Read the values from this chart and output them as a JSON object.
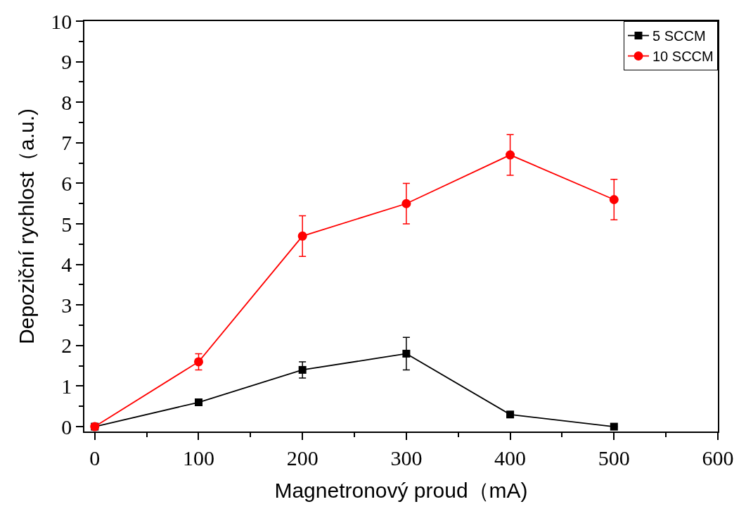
{
  "chart_data": {
    "type": "line",
    "xlabel": "Magnetronový proud（mA)",
    "ylabel": "Depoziční rychlost（a.u.)",
    "x": [
      0,
      100,
      200,
      300,
      400,
      500
    ],
    "series": [
      {
        "name": "5 SCCM",
        "color": "#000000",
        "marker": "square",
        "values": [
          0,
          0.6,
          1.4,
          1.8,
          0.3,
          0
        ],
        "errors": [
          null,
          0.05,
          0.2,
          0.4,
          0.05,
          null
        ]
      },
      {
        "name": "10 SCCM",
        "color": "#ff0000",
        "marker": "circle",
        "values": [
          0,
          1.6,
          4.7,
          5.5,
          6.7,
          5.6
        ],
        "errors": [
          null,
          0.2,
          0.5,
          0.5,
          0.5,
          0.5
        ]
      }
    ],
    "xlim": [
      -10,
      600
    ],
    "xticks": [
      0,
      100,
      200,
      300,
      400,
      500,
      600
    ],
    "ylim": [
      -0.12,
      10
    ],
    "yticks": [
      0,
      1,
      2,
      3,
      4,
      5,
      6,
      7,
      8,
      9,
      10
    ],
    "grid": false,
    "legend": "top right",
    "line_style": "solid"
  }
}
